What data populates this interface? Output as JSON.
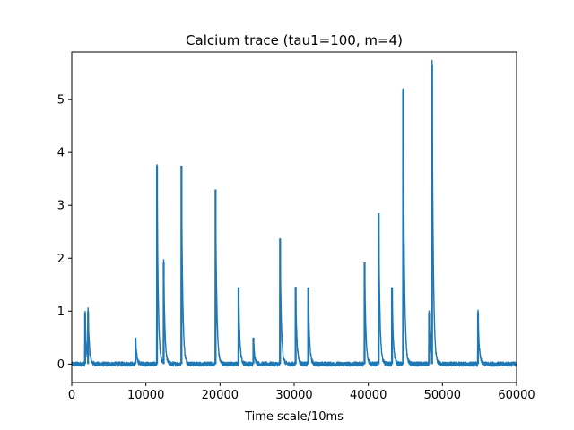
{
  "chart_data": {
    "type": "line",
    "title": "Calcium trace (tau1=100, m=4)",
    "xlabel": "Time scale/10ms",
    "ylabel": "",
    "xlim": [
      0,
      60000
    ],
    "ylim": [
      -0.35,
      5.9
    ],
    "x_ticks": [
      0,
      10000,
      20000,
      30000,
      40000,
      50000,
      60000
    ],
    "x_tick_labels": [
      "0",
      "10000",
      "20000",
      "30000",
      "40000",
      "50000",
      "60000"
    ],
    "y_ticks": [
      0,
      1,
      2,
      3,
      4,
      5
    ],
    "y_tick_labels": [
      "0",
      "1",
      "2",
      "3",
      "4",
      "5"
    ],
    "grid": false,
    "baseline": 0.0,
    "noise_amplitude": 0.04,
    "series": [
      {
        "color": "#1f77b4",
        "peaks": [
          {
            "x": 1800,
            "y": 0.97
          },
          {
            "x": 2200,
            "y": 1.0
          },
          {
            "x": 8600,
            "y": 0.5
          },
          {
            "x": 11500,
            "y": 3.75
          },
          {
            "x": 12400,
            "y": 1.92
          },
          {
            "x": 14800,
            "y": 3.75
          },
          {
            "x": 19400,
            "y": 3.3
          },
          {
            "x": 22500,
            "y": 1.45
          },
          {
            "x": 24500,
            "y": 0.5
          },
          {
            "x": 28100,
            "y": 2.37
          },
          {
            "x": 30200,
            "y": 1.46
          },
          {
            "x": 31900,
            "y": 1.45
          },
          {
            "x": 39500,
            "y": 1.92
          },
          {
            "x": 41400,
            "y": 2.85
          },
          {
            "x": 43200,
            "y": 1.45
          },
          {
            "x": 44700,
            "y": 5.2
          },
          {
            "x": 48200,
            "y": 0.97
          },
          {
            "x": 48600,
            "y": 5.65
          },
          {
            "x": 54800,
            "y": 0.98
          }
        ]
      }
    ]
  }
}
